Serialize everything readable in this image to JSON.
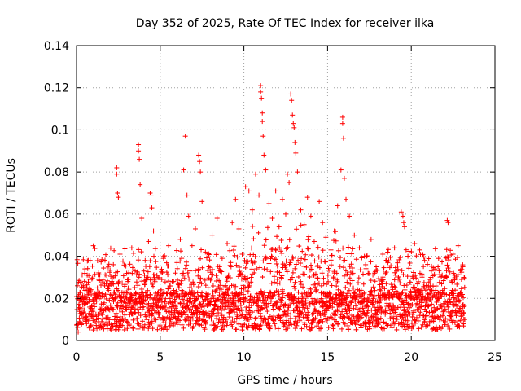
{
  "chart_data": {
    "type": "scatter",
    "title": "Day 352 of 2025, Rate Of TEC Index for receiver ilka",
    "xlabel": "GPS time / hours",
    "ylabel": "ROTI / TECUs",
    "xlim": [
      0,
      25
    ],
    "ylim": [
      0,
      0.14
    ],
    "xticks": [
      0,
      5,
      10,
      15,
      20,
      25
    ],
    "xtick_labels": [
      "0",
      "5",
      "10",
      "15",
      "20",
      "25"
    ],
    "yticks": [
      0,
      0.02,
      0.04,
      0.06,
      0.08,
      0.1,
      0.12,
      0.14
    ],
    "ytick_labels": [
      "0",
      "0.02",
      "0.04",
      "0.06",
      "0.08",
      "0.1",
      "0.12",
      "0.14"
    ],
    "grid": true,
    "marker": "+",
    "color": "#ff0000",
    "data_extent_hours": [
      0,
      23.2
    ],
    "series": [
      {
        "name": "ROTI",
        "points": [
          [
            0.1,
            0.004
          ],
          [
            0.2,
            0.019
          ],
          [
            0.3,
            0.012
          ],
          [
            0.4,
            0.026
          ],
          [
            0.5,
            0.034
          ],
          [
            0.7,
            0.038
          ],
          [
            0.8,
            0.029
          ],
          [
            1.0,
            0.045
          ],
          [
            1.2,
            0.022
          ],
          [
            1.5,
            0.015
          ],
          [
            1.8,
            0.031
          ],
          [
            2.0,
            0.027
          ],
          [
            2.2,
            0.036
          ],
          [
            2.4,
            0.082
          ],
          [
            2.4,
            0.079
          ],
          [
            2.45,
            0.07
          ],
          [
            2.5,
            0.068
          ],
          [
            2.6,
            0.041
          ],
          [
            2.9,
            0.018
          ],
          [
            3.1,
            0.029
          ],
          [
            3.3,
            0.044
          ],
          [
            3.5,
            0.033
          ],
          [
            3.7,
            0.093
          ],
          [
            3.7,
            0.09
          ],
          [
            3.75,
            0.086
          ],
          [
            3.8,
            0.074
          ],
          [
            3.9,
            0.058
          ],
          [
            4.1,
            0.038
          ],
          [
            4.3,
            0.047
          ],
          [
            4.4,
            0.07
          ],
          [
            4.45,
            0.069
          ],
          [
            4.5,
            0.063
          ],
          [
            4.6,
            0.052
          ],
          [
            4.8,
            0.031
          ],
          [
            5.0,
            0.024
          ],
          [
            5.2,
            0.039
          ],
          [
            5.5,
            0.045
          ],
          [
            5.8,
            0.028
          ],
          [
            6.0,
            0.037
          ],
          [
            6.2,
            0.048
          ],
          [
            6.4,
            0.081
          ],
          [
            6.5,
            0.097
          ],
          [
            6.6,
            0.069
          ],
          [
            6.7,
            0.059
          ],
          [
            6.9,
            0.045
          ],
          [
            7.1,
            0.053
          ],
          [
            7.3,
            0.088
          ],
          [
            7.35,
            0.085
          ],
          [
            7.4,
            0.08
          ],
          [
            7.5,
            0.066
          ],
          [
            7.7,
            0.042
          ],
          [
            7.9,
            0.035
          ],
          [
            8.1,
            0.05
          ],
          [
            8.4,
            0.058
          ],
          [
            8.7,
            0.039
          ],
          [
            9.0,
            0.046
          ],
          [
            9.3,
            0.056
          ],
          [
            9.5,
            0.067
          ],
          [
            9.7,
            0.053
          ],
          [
            9.9,
            0.041
          ],
          [
            10.1,
            0.073
          ],
          [
            10.3,
            0.071
          ],
          [
            10.5,
            0.062
          ],
          [
            10.7,
            0.079
          ],
          [
            10.9,
            0.069
          ],
          [
            11.0,
            0.121
          ],
          [
            11.0,
            0.118
          ],
          [
            11.05,
            0.115
          ],
          [
            11.1,
            0.108
          ],
          [
            11.1,
            0.104
          ],
          [
            11.15,
            0.097
          ],
          [
            11.2,
            0.088
          ],
          [
            11.3,
            0.081
          ],
          [
            11.5,
            0.065
          ],
          [
            11.7,
            0.058
          ],
          [
            11.9,
            0.071
          ],
          [
            12.1,
            0.054
          ],
          [
            12.3,
            0.067
          ],
          [
            12.5,
            0.06
          ],
          [
            12.6,
            0.079
          ],
          [
            12.7,
            0.075
          ],
          [
            12.8,
            0.117
          ],
          [
            12.85,
            0.114
          ],
          [
            12.9,
            0.107
          ],
          [
            12.95,
            0.103
          ],
          [
            13.0,
            0.101
          ],
          [
            13.05,
            0.094
          ],
          [
            13.1,
            0.089
          ],
          [
            13.2,
            0.08
          ],
          [
            13.4,
            0.062
          ],
          [
            13.6,
            0.055
          ],
          [
            13.8,
            0.068
          ],
          [
            14.0,
            0.059
          ],
          [
            14.2,
            0.047
          ],
          [
            14.5,
            0.066
          ],
          [
            14.7,
            0.056
          ],
          [
            14.9,
            0.049
          ],
          [
            15.2,
            0.043
          ],
          [
            15.4,
            0.052
          ],
          [
            15.6,
            0.064
          ],
          [
            15.8,
            0.081
          ],
          [
            15.9,
            0.106
          ],
          [
            15.9,
            0.103
          ],
          [
            15.95,
            0.096
          ],
          [
            16.0,
            0.077
          ],
          [
            16.1,
            0.067
          ],
          [
            16.3,
            0.059
          ],
          [
            16.6,
            0.05
          ],
          [
            16.9,
            0.044
          ],
          [
            17.2,
            0.04
          ],
          [
            17.6,
            0.048
          ],
          [
            17.9,
            0.035
          ],
          [
            18.3,
            0.041
          ],
          [
            18.6,
            0.037
          ],
          [
            19.0,
            0.044
          ],
          [
            19.4,
            0.061
          ],
          [
            19.5,
            0.059
          ],
          [
            19.55,
            0.056
          ],
          [
            19.6,
            0.054
          ],
          [
            19.8,
            0.04
          ],
          [
            20.2,
            0.046
          ],
          [
            20.5,
            0.043
          ],
          [
            20.8,
            0.038
          ],
          [
            21.2,
            0.033
          ],
          [
            21.6,
            0.035
          ],
          [
            22.0,
            0.03
          ],
          [
            22.15,
            0.057
          ],
          [
            22.2,
            0.056
          ],
          [
            22.5,
            0.041
          ],
          [
            22.8,
            0.045
          ],
          [
            23.0,
            0.029
          ],
          [
            23.1,
            0.017
          ],
          [
            23.2,
            0.01
          ],
          [
            0.6,
            0.008
          ],
          [
            1.4,
            0.006
          ],
          [
            3.0,
            0.009
          ],
          [
            5.6,
            0.007
          ],
          [
            8.2,
            0.005
          ],
          [
            12.0,
            0.011
          ],
          [
            17.0,
            0.006
          ]
        ]
      }
    ]
  }
}
